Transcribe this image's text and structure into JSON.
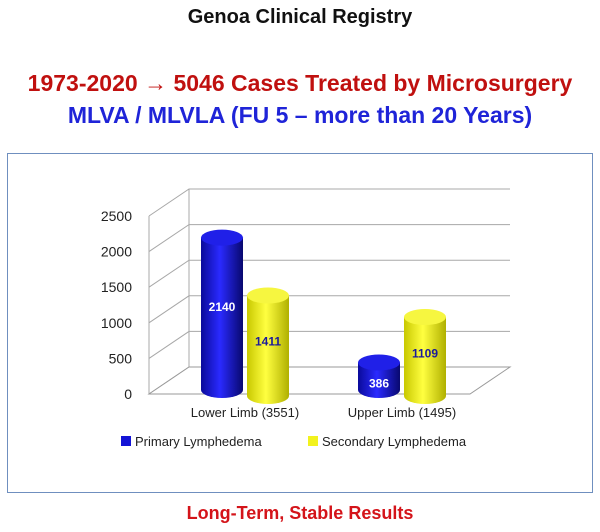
{
  "header": {
    "title": "Genoa Clinical Registry",
    "headline_part1": "1973-2020",
    "headline_arrow": "→",
    "headline_part2": "5046 Cases Treated by Microsurgery",
    "headline_line2": "MLVA / MLVLA (FU 5 – more than 20 Years)"
  },
  "footer": {
    "text": "Long-Term, Stable Results"
  },
  "colors": {
    "headline_red": "#c0100f",
    "headline_blue": "#1f24d8",
    "primary_series": "#1414d6",
    "secondary_series": "#f2f21e",
    "footer_red": "#d4141a"
  },
  "chart_data": {
    "type": "bar",
    "style": "3d-cylinder",
    "categories": [
      "Lower Limb (3551)",
      "Upper Limb (1495)"
    ],
    "series": [
      {
        "name": "Primary Lymphedema",
        "values": [
          2140,
          386
        ]
      },
      {
        "name": "Secondary Lymphedema",
        "values": [
          1411,
          1109
        ]
      }
    ],
    "ylim": [
      0,
      2500
    ],
    "yticks": [
      0,
      500,
      1000,
      1500,
      2000,
      2500
    ],
    "ytick_labels": [
      "0",
      "500",
      "1000",
      "1500",
      "2000",
      "2500"
    ],
    "data_labels": [
      [
        "2140",
        "386"
      ],
      [
        "1411",
        "1109"
      ]
    ],
    "legend_position": "bottom",
    "grid": true
  }
}
